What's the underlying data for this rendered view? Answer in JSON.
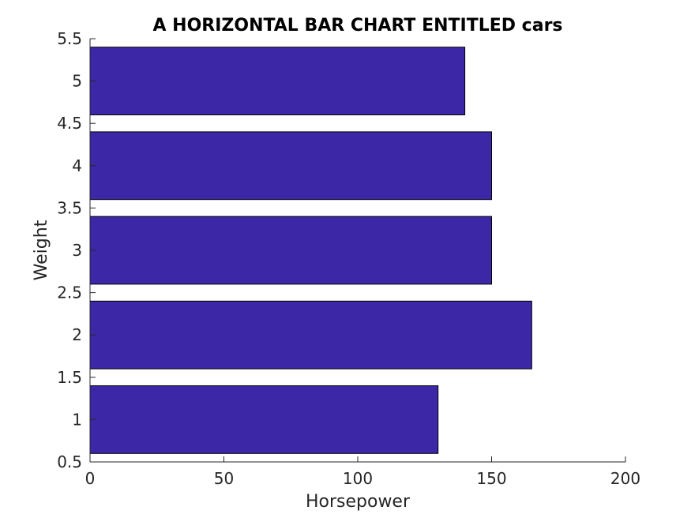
{
  "chart_data": {
    "type": "bar",
    "orientation": "horizontal",
    "title": "A HORIZONTAL BAR CHART ENTITLED cars",
    "xlabel": "Horsepower",
    "ylabel": "Weight",
    "categories": [
      1,
      2,
      3,
      4,
      5
    ],
    "values": [
      130,
      165,
      150,
      150,
      140
    ],
    "xlim": [
      0,
      200
    ],
    "ylim": [
      0.5,
      5.5
    ],
    "xticks": [
      0,
      50,
      100,
      150,
      200
    ],
    "yticks": [
      0.5,
      1,
      1.5,
      2,
      2.5,
      3,
      3.5,
      4,
      4.5,
      5,
      5.5
    ],
    "xtick_labels": [
      "0",
      "50",
      "100",
      "150",
      "200"
    ],
    "ytick_labels": [
      "0.5",
      "1",
      "1.5",
      "2",
      "2.5",
      "3",
      "3.5",
      "4",
      "4.5",
      "5",
      "5.5"
    ],
    "bar_width": 0.8,
    "bar_color": "#3C28A6",
    "grid": false,
    "box": false
  }
}
